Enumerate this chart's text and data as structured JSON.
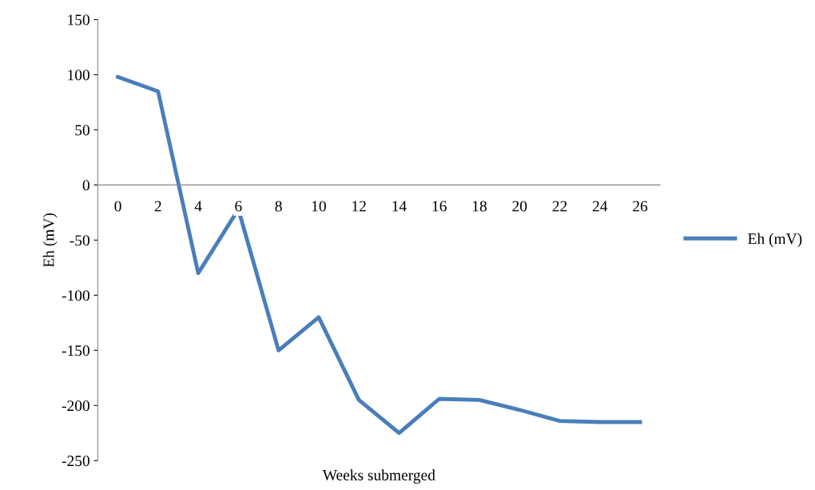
{
  "chart_data": {
    "type": "line",
    "xlabel": "Weeks submerged",
    "ylabel": "Eh (mV)",
    "categories": [
      "0",
      "2",
      "4",
      "6",
      "8",
      "10",
      "12",
      "14",
      "16",
      "18",
      "20",
      "22",
      "24",
      "26"
    ],
    "series": [
      {
        "name": "Eh (mV)",
        "color": "#4a7ebb",
        "values": [
          98,
          85,
          -80,
          -22,
          -150,
          -120,
          -195,
          -225,
          -194,
          -195,
          -204,
          -214,
          -215,
          -215
        ]
      }
    ],
    "ylim": [
      -250,
      150
    ],
    "yticks": [
      -250,
      -200,
      -150,
      -100,
      -50,
      0,
      50,
      100,
      150
    ],
    "grid": false,
    "legend": "right",
    "marker": "none",
    "line_style": "solid"
  }
}
